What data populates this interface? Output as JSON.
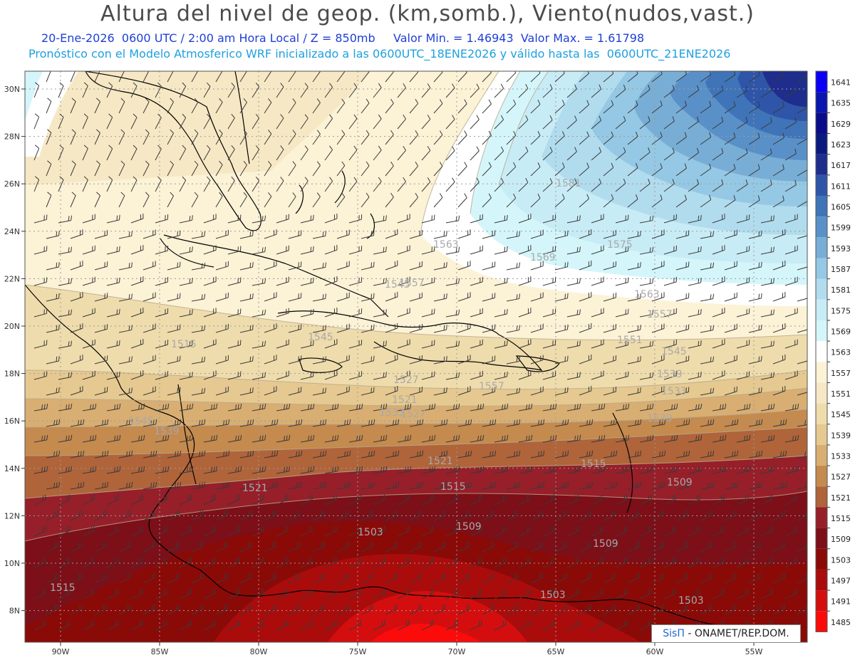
{
  "header": {
    "title": "Altura del nivel de geop. (km,somb.), Viento(nudos,vast.)",
    "subtitle_line1": "20-Ene-2026  0600 UTC / 2:00 am Hora Local / Z = 850mb     Valor Min. = 1.46943  Valor Max. = 1.61798",
    "subtitle_line2": "Pronóstico con el Modelo Atmosferico WRF inicializado a las 0600UTC_18ENE2026 y válido hasta las  0600UTC_21ENE2026"
  },
  "credit": {
    "logo": "SisΠ",
    "text": " - ONAMET/REP.DOM."
  },
  "axes": {
    "lat_ticks": [
      "30N",
      "28N",
      "26N",
      "24N",
      "22N",
      "20N",
      "18N",
      "16N",
      "14N",
      "12N",
      "10N",
      "8N"
    ],
    "lon_ticks": [
      "90W",
      "85W",
      "80W",
      "75W",
      "70W",
      "65W",
      "60W",
      "55W"
    ]
  },
  "colorbar": {
    "levels": [
      "1641",
      "1635",
      "1629",
      "1623",
      "1617",
      "1611",
      "1605",
      "1599",
      "1593",
      "1587",
      "1581",
      "1575",
      "1569",
      "1563",
      "1557",
      "1551",
      "1545",
      "1539",
      "1533",
      "1527",
      "1521",
      "1515",
      "1509",
      "1503",
      "1497",
      "1491",
      "1485"
    ],
    "colors": [
      "#0b00f5",
      "#0a16b0",
      "#0a0c8a",
      "#0a1a7e",
      "#1f2d8c",
      "#2f55a8",
      "#3f74b8",
      "#5a90c8",
      "#78aed6",
      "#95c8e4",
      "#b1dcee",
      "#c8ecf6",
      "#d4f6fb",
      "#ffffff",
      "#fcf2d6",
      "#f6e8c4",
      "#efdcac",
      "#e6c990",
      "#d9ae72",
      "#c48a4e",
      "#b0643a",
      "#961f2a",
      "#7c0f18",
      "#8a0a08",
      "#aa0c0c",
      "#d40e0e",
      "#fc0b0b"
    ]
  },
  "contour_labels": [
    {
      "text": "1563"
    },
    {
      "text": "1569"
    },
    {
      "text": "1575"
    },
    {
      "text": "1581"
    },
    {
      "text": "1563"
    },
    {
      "text": "1557"
    },
    {
      "text": "1551"
    },
    {
      "text": "1545"
    },
    {
      "text": "1539"
    },
    {
      "text": "1533"
    },
    {
      "text": "1527"
    },
    {
      "text": "1521"
    },
    {
      "text": "1515"
    },
    {
      "text": "1509"
    },
    {
      "text": "1503"
    },
    {
      "text": "1509"
    },
    {
      "text": "1503"
    },
    {
      "text": "1515"
    },
    {
      "text": "1545"
    },
    {
      "text": "1545"
    },
    {
      "text": "1539"
    },
    {
      "text": "1557"
    },
    {
      "text": "1521"
    },
    {
      "text": "1527"
    },
    {
      "text": "1509"
    },
    {
      "text": "1503"
    },
    {
      "text": "1515"
    },
    {
      "text": "1533"
    },
    {
      "text": "1539"
    },
    {
      "text": "1545"
    },
    {
      "text": "1557"
    },
    {
      "text": "1521"
    },
    {
      "text": "1515"
    }
  ]
}
